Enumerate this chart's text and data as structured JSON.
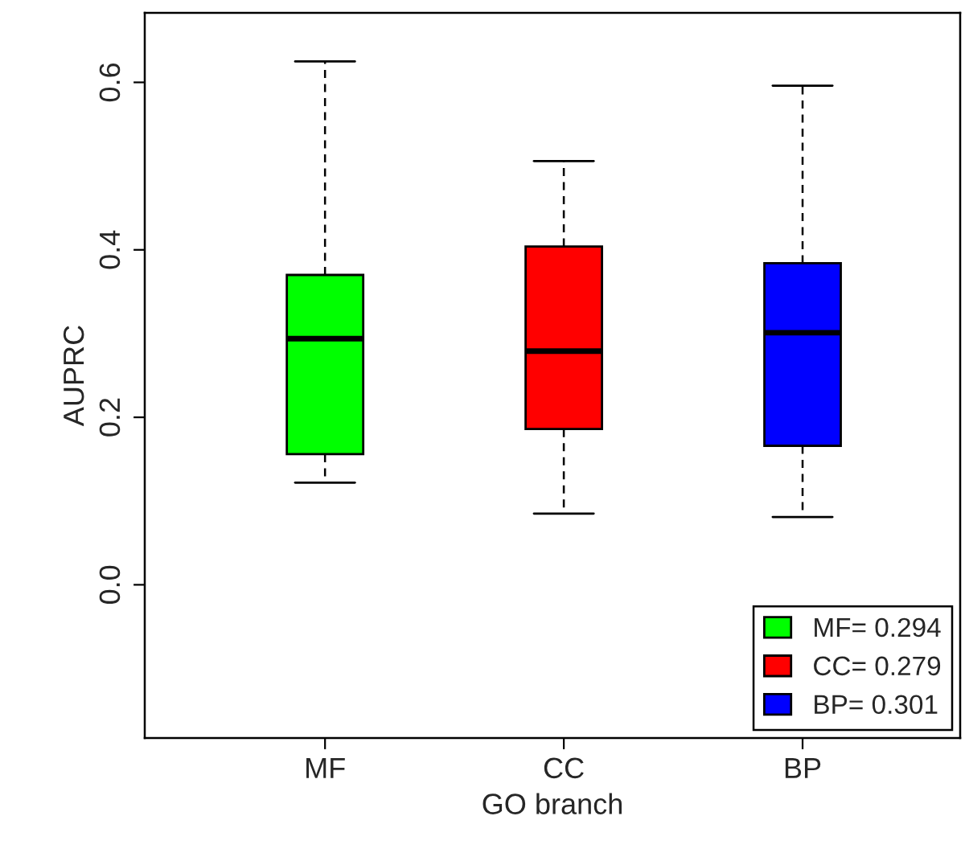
{
  "chart_data": {
    "type": "box",
    "xlabel": "GO branch",
    "ylabel": "AUPRC",
    "categories": [
      "MF",
      "CC",
      "BP"
    ],
    "series": [
      {
        "name": "MF= 0.294",
        "color": "#00ff00",
        "boxes": [
          {
            "low": 0.122,
            "q1": 0.156,
            "median": 0.294,
            "q3": 0.37,
            "high": 0.625
          },
          null,
          null
        ]
      },
      {
        "name": "CC= 0.279",
        "color": "#ff0000",
        "boxes": [
          null,
          {
            "low": 0.085,
            "q1": 0.186,
            "median": 0.279,
            "q3": 0.404,
            "high": 0.506
          },
          null
        ]
      },
      {
        "name": "BP= 0.301",
        "color": "#0000ff",
        "boxes": [
          null,
          null,
          {
            "low": 0.081,
            "q1": 0.166,
            "median": 0.301,
            "q3": 0.384,
            "high": 0.596
          }
        ]
      }
    ],
    "ylim": [
      -0.183,
      0.683
    ],
    "yticks": [
      {
        "value": 0,
        "label": "0.0"
      },
      0.2,
      0.4,
      0.6
    ],
    "legend": "bottom right",
    "grid": false
  }
}
